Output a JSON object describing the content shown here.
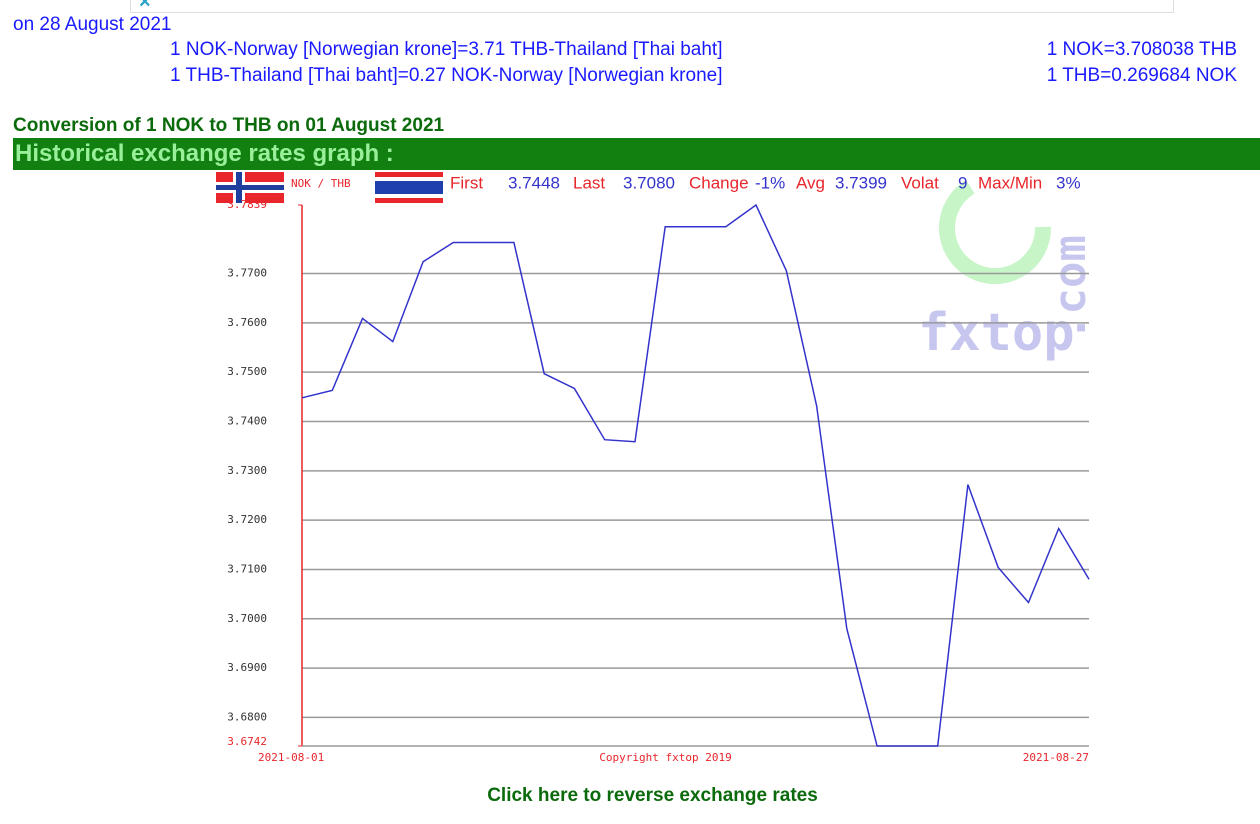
{
  "header": {
    "date_line": "on 28 August 2021",
    "rates": [
      {
        "text": "1 NOK-Norway [Norwegian krone]=3.71 THB-Thailand [Thai baht]",
        "exact": "1 NOK=3.708038 THB"
      },
      {
        "text": "1 THB-Thailand [Thai baht]=0.27 NOK-Norway [Norwegian krone]",
        "exact": "1 THB=0.269684 NOK"
      }
    ],
    "conversion": "Conversion of 1 NOK to THB on 01 August 2021",
    "banner": "Historical exchange rates graph :"
  },
  "chart_data": {
    "type": "line",
    "pair": "NOK / THB",
    "stats": [
      {
        "label": "First",
        "value": "3.7448"
      },
      {
        "label": "Last",
        "value": "3.7080"
      },
      {
        "label": "Change",
        "value": "-1%"
      },
      {
        "label": "Avg",
        "value": "3.7399"
      },
      {
        "label": "Volat",
        "value": "9"
      },
      {
        "label": "Max/Min",
        "value": "3%"
      }
    ],
    "categories": [
      "2021-08-01",
      null,
      null,
      null,
      null,
      null,
      null,
      null,
      null,
      null,
      null,
      null,
      null,
      null,
      null,
      null,
      null,
      null,
      null,
      null,
      null,
      null,
      null,
      null,
      null,
      null,
      "2021-08-27"
    ],
    "values": [
      3.7448,
      3.7463,
      3.7609,
      3.7562,
      3.7724,
      3.7763,
      3.7763,
      3.7763,
      3.7497,
      3.7467,
      3.7363,
      3.7359,
      3.7795,
      3.7795,
      3.7795,
      3.7839,
      3.7706,
      3.7432,
      3.698,
      3.6742,
      3.6742,
      3.6742,
      3.7272,
      3.7104,
      3.7033,
      3.7183,
      3.708
    ],
    "color": "#3333cc",
    "ylim": [
      3.6742,
      3.7839
    ],
    "yticks": [
      3.6742,
      {
        "value": 3.68,
        "label": "3.6800"
      },
      {
        "value": 3.69,
        "label": "3.6900"
      },
      {
        "value": 3.7,
        "label": "3.7000"
      },
      {
        "value": 3.71,
        "label": "3.7100"
      },
      {
        "value": 3.72,
        "label": "3.7200"
      },
      {
        "value": 3.73,
        "label": "3.7300"
      },
      {
        "value": 3.74,
        "label": "3.7400"
      },
      {
        "value": 3.75,
        "label": "3.7500"
      },
      {
        "value": 3.76,
        "label": "3.7600"
      },
      {
        "value": 3.77,
        "label": "3.7700"
      },
      3.7839
    ],
    "grid": true,
    "copyright": "Copyright fxtop 2019",
    "watermark": [
      "fxtop",
      ".com"
    ]
  },
  "footer": {
    "link": "Click here to reverse exchange rates"
  }
}
